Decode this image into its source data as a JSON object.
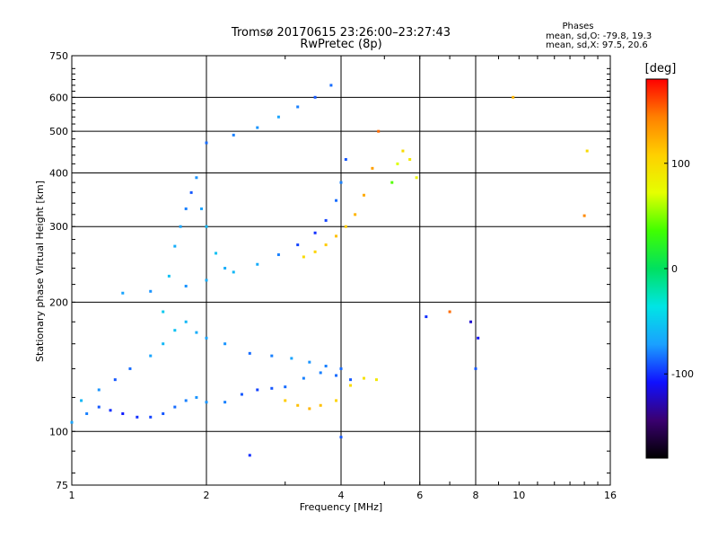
{
  "chart_data": {
    "type": "scatter",
    "title": "Tromsø 20170615 23:26:00–23:27:43",
    "subtitle": "RwPretec (8p)",
    "annotation": {
      "heading": "Phases",
      "line1": "mean, sd,O: -79.8, 19.3",
      "line2": "mean, sd,X:  97.5, 20.6"
    },
    "xlabel": "Frequency [MHz]",
    "ylabel": "Stationary phase Virtual Height [km]",
    "x_scale": "log",
    "y_scale": "log",
    "xlim": [
      1,
      16
    ],
    "ylim": [
      75,
      750
    ],
    "x_ticks": [
      1,
      2,
      4,
      6,
      8,
      10,
      16
    ],
    "y_ticks": [
      75,
      100,
      200,
      300,
      400,
      500,
      600,
      750
    ],
    "x_grid": [
      2,
      4,
      6,
      8
    ],
    "y_grid": [
      100,
      200,
      300,
      400,
      500,
      600
    ],
    "grid": true,
    "colorbar": {
      "label": "[deg]",
      "range": [
        -180,
        180
      ],
      "ticks": [
        100,
        0,
        -100
      ],
      "colors": [
        "#000000",
        "#3a0070",
        "#1010ff",
        "#1aa0ff",
        "#00e5e5",
        "#00e060",
        "#40ff00",
        "#e5ff00",
        "#ffd000",
        "#ff8000",
        "#ff0000"
      ]
    },
    "series": [
      {
        "trace": "o-lower",
        "x": [
          1.0,
          1.08,
          1.15,
          1.22,
          1.3,
          1.4,
          1.5,
          1.6,
          1.7,
          1.8,
          1.9,
          2.0,
          2.2,
          2.4,
          2.6,
          2.8,
          3.0,
          3.3,
          3.6,
          3.9,
          4.2
        ],
        "y": [
          105,
          110,
          114,
          112,
          110,
          108,
          108,
          110,
          114,
          118,
          120,
          117,
          117,
          122,
          125,
          126,
          127,
          133,
          137,
          135,
          132
        ],
        "phase": [
          -70,
          -80,
          -90,
          -100,
          -105,
          -100,
          -95,
          -90,
          -85,
          -80,
          -75,
          -75,
          -80,
          -90,
          -95,
          -90,
          -85,
          -80,
          -80,
          -85,
          -90
        ]
      },
      {
        "trace": "o-lower-upper",
        "x": [
          1.05,
          1.15,
          1.25,
          1.35,
          1.5,
          1.6,
          1.7,
          1.8,
          1.9,
          2.0,
          2.2,
          2.5,
          2.8,
          3.1,
          3.4,
          3.7,
          4.0
        ],
        "y": [
          118,
          125,
          132,
          140,
          150,
          160,
          172,
          180,
          170,
          165,
          160,
          152,
          150,
          148,
          145,
          142,
          140
        ],
        "phase": [
          -60,
          -75,
          -90,
          -85,
          -70,
          -60,
          -55,
          -60,
          -65,
          -70,
          -75,
          -85,
          -80,
          -70,
          -75,
          -80,
          -85
        ]
      },
      {
        "trace": "o-spread",
        "x": [
          1.6,
          1.65,
          1.7,
          1.75,
          1.8,
          1.85,
          1.9,
          1.95,
          2.0,
          2.1,
          2.2
        ],
        "y": [
          190,
          230,
          270,
          300,
          330,
          360,
          390,
          330,
          300,
          260,
          240
        ],
        "phase": [
          -50,
          -55,
          -65,
          -70,
          -80,
          -90,
          -75,
          -70,
          -60,
          -55,
          -65
        ]
      },
      {
        "trace": "o-f-layer",
        "x": [
          1.3,
          1.5,
          1.8,
          2.0,
          2.3,
          2.6,
          2.9,
          3.2,
          3.5,
          3.7,
          3.9,
          4.0,
          4.1
        ],
        "y": [
          210,
          212,
          218,
          225,
          235,
          245,
          258,
          272,
          290,
          310,
          345,
          380,
          430
        ],
        "phase": [
          -70,
          -75,
          -75,
          -65,
          -60,
          -65,
          -80,
          -95,
          -100,
          -95,
          -85,
          -80,
          -90
        ]
      },
      {
        "trace": "x-f-layer",
        "x": [
          3.3,
          3.5,
          3.7,
          3.9,
          4.1,
          4.3,
          4.5,
          4.7,
          4.85
        ],
        "y": [
          255,
          262,
          272,
          285,
          300,
          320,
          355,
          410,
          500
        ],
        "phase": [
          100,
          105,
          110,
          115,
          110,
          120,
          125,
          130,
          150
        ]
      },
      {
        "trace": "o-upper",
        "x": [
          2.0,
          2.3,
          2.6,
          2.9,
          3.2,
          3.5,
          3.8
        ],
        "y": [
          470,
          490,
          510,
          540,
          570,
          600,
          640
        ],
        "phase": [
          -85,
          -80,
          -75,
          -70,
          -80,
          -90,
          -85
        ]
      },
      {
        "trace": "x-lower",
        "x": [
          3.0,
          3.2,
          3.4,
          3.6,
          3.9,
          4.2,
          4.5,
          4.8
        ],
        "y": [
          118,
          115,
          113,
          115,
          118,
          128,
          133,
          132
        ],
        "phase": [
          110,
          115,
          120,
          115,
          105,
          100,
          95,
          90
        ]
      },
      {
        "trace": "x-upper",
        "x": [
          5.2,
          5.35,
          5.5,
          5.7,
          5.9
        ],
        "y": [
          380,
          420,
          450,
          430,
          390
        ],
        "phase": [
          40,
          70,
          100,
          90,
          80
        ]
      },
      {
        "trace": "scattered",
        "x": [
          2.5,
          4.0,
          6.2,
          7.0,
          7.8,
          8.1,
          8.0,
          9.7,
          14.0,
          14.2
        ],
        "y": [
          88,
          97,
          185,
          190,
          180,
          165,
          140,
          600,
          318,
          450
        ],
        "phase": [
          -100,
          -90,
          -100,
          150,
          -120,
          -110,
          -90,
          120,
          140,
          100
        ]
      }
    ]
  }
}
